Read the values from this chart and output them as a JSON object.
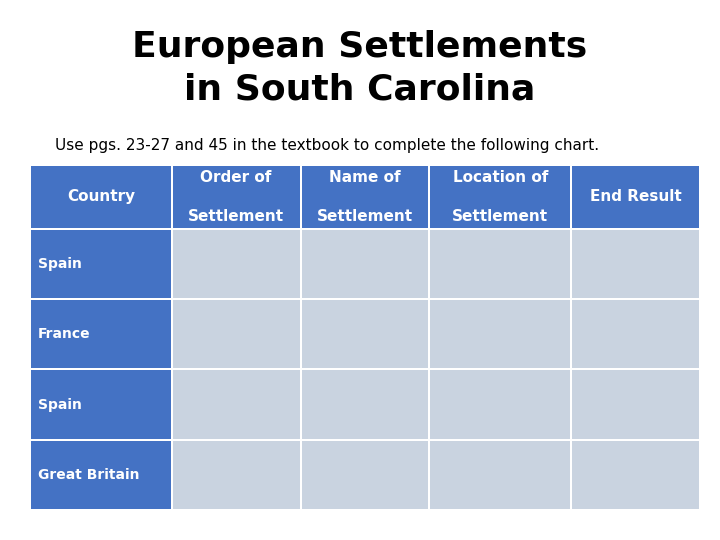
{
  "title_line1": "European Settlements",
  "title_line2": "in South Carolina",
  "subtitle": "Use pgs. 23-27 and 45 in the textbook to complete the following chart.",
  "header_row": [
    "Country",
    "Order of\n\nSettlement",
    "Name of\n\nSettlement",
    "Location of\n\nSettlement",
    "End Result"
  ],
  "data_rows": [
    "Spain",
    "France",
    "Spain",
    "Great Britain"
  ],
  "header_bg": "#4472C4",
  "header_text": "#FFFFFF",
  "row_label_bg": "#4472C4",
  "row_label_text": "#FFFFFF",
  "cell_bg": "#C9D3E0",
  "bg_color": "#FFFFFF",
  "title_fontsize": 26,
  "subtitle_fontsize": 11,
  "header_fontsize": 11,
  "row_label_fontsize": 10
}
